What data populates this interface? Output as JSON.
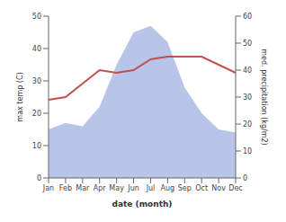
{
  "chart_data": {
    "type": "line",
    "xlabel": "date (month)",
    "ylabel": "max temp (C)",
    "y2label": "med. precipitation (kg/m2)",
    "categories": [
      "Jan",
      "Feb",
      "Mar",
      "Apr",
      "May",
      "Jun",
      "Jul",
      "Aug",
      "Sep",
      "Oct",
      "Nov",
      "Dec"
    ],
    "series": [
      {
        "type": "area",
        "color": "#b8c4e8",
        "values": [
          15,
          17,
          16,
          22,
          35,
          45,
          47,
          42,
          28,
          20,
          15,
          14
        ]
      },
      {
        "type": "line",
        "color": "#c0504d",
        "axis": "y2",
        "values": [
          29,
          30,
          35,
          40,
          39,
          40,
          44,
          45,
          45,
          45,
          42,
          39
        ]
      }
    ],
    "ylim": [
      0,
      50
    ],
    "yticks": [
      0,
      10,
      20,
      30,
      40,
      50
    ],
    "y2lim": [
      0,
      60
    ],
    "y2ticks": [
      0,
      10,
      20,
      30,
      40,
      50,
      60
    ],
    "grid": false
  }
}
